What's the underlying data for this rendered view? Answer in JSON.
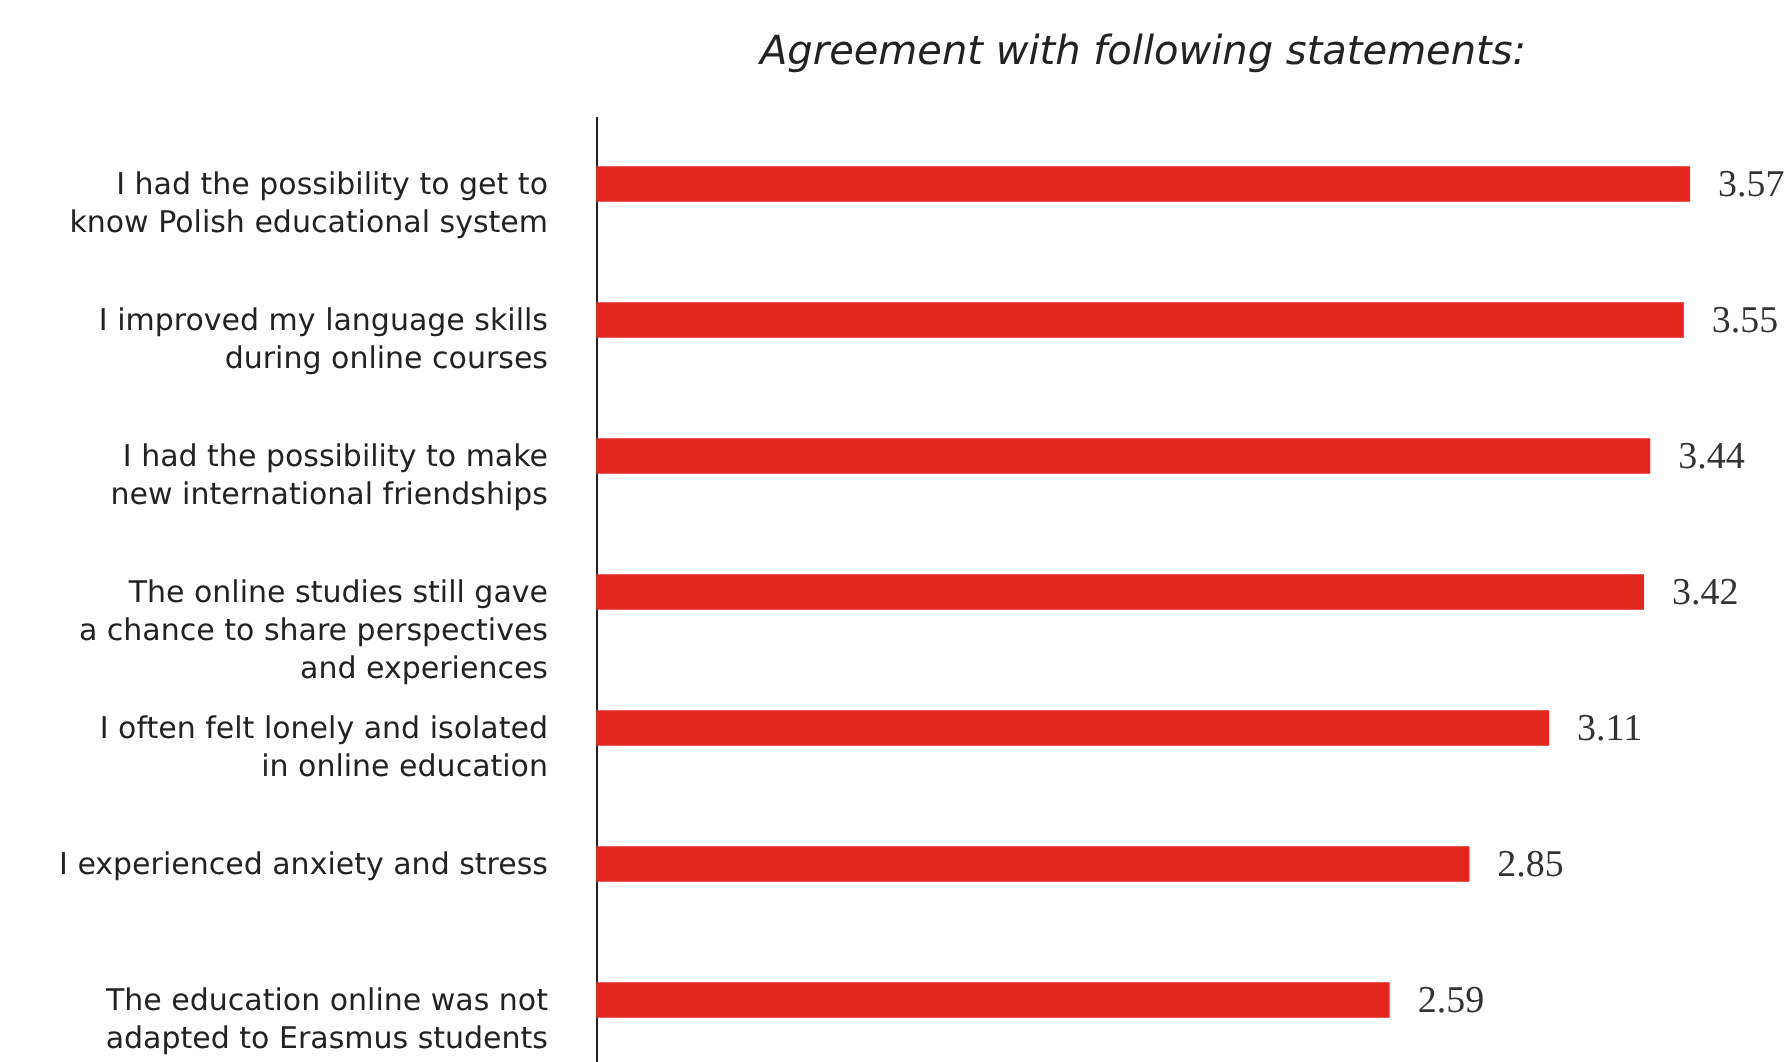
{
  "chart_data": {
    "type": "bar",
    "orientation": "horizontal",
    "title": "Agreement with following statements:",
    "categories": [
      "I had the possibility to get to\nknow Polish educational system",
      "I improved my language skills\nduring online courses",
      "I had the possibility to make\nnew international friendships",
      "The online studies still gave\na chance to share perspectives\nand experiences",
      "I often felt lonely and isolated\nin online education",
      "I experienced anxiety and stress",
      "The education online was not\nadapted to Erasmus students"
    ],
    "values": [
      3.57,
      3.55,
      3.44,
      3.42,
      3.11,
      2.85,
      2.59
    ],
    "color": "#e3271e",
    "data_labels": true
  }
}
